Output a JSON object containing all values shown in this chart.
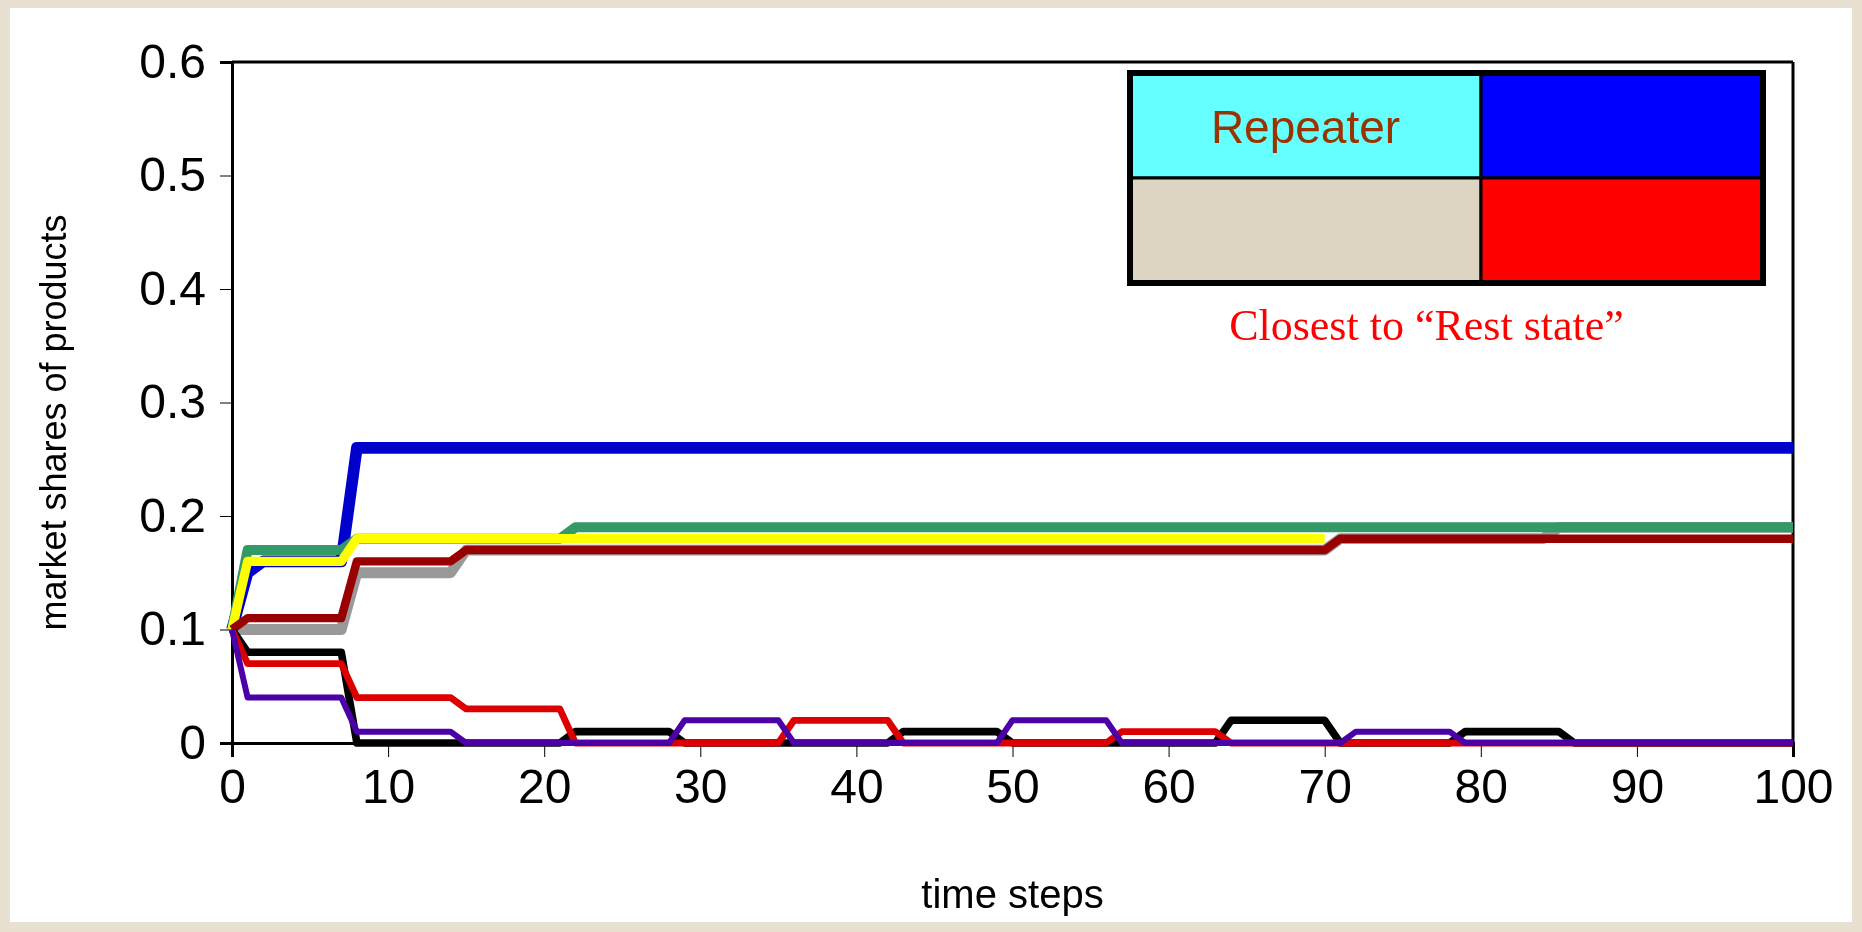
{
  "chart_data": {
    "type": "line",
    "xlabel": "time steps",
    "ylabel": "market shares of products",
    "annotations": [
      "Repeater",
      "Closest to “Rest state”"
    ],
    "xlim": [
      0,
      100
    ],
    "xticks": [
      0,
      10,
      20,
      30,
      40,
      50,
      60,
      70,
      80,
      90,
      100
    ],
    "ylim": [
      0,
      0.6
    ],
    "yticks": [
      0,
      0.1,
      0.2,
      0.3,
      0.4,
      0.5,
      0.6
    ],
    "grid": false,
    "marker": "none",
    "line_style": "solid",
    "series": [
      {
        "color": "#0000cc",
        "x": [
          0,
          1,
          2,
          7,
          8,
          100
        ],
        "values": [
          0.1,
          0.15,
          0.16,
          0.16,
          0.26,
          0.26
        ]
      },
      {
        "color": "#999999",
        "x": [
          0,
          1,
          7,
          8,
          14,
          15,
          70,
          71,
          84,
          85,
          100
        ],
        "values": [
          0.1,
          0.1,
          0.1,
          0.15,
          0.15,
          0.17,
          0.17,
          0.18,
          0.18,
          0.19,
          0.19
        ]
      },
      {
        "color": "#339966",
        "x": [
          0,
          1,
          7,
          8,
          21,
          22,
          100
        ],
        "values": [
          0.1,
          0.17,
          0.17,
          0.18,
          0.18,
          0.19,
          0.19
        ]
      },
      {
        "color": "#ffff00",
        "x": [
          0,
          1,
          7,
          8,
          70
        ],
        "values": [
          0.1,
          0.16,
          0.16,
          0.18,
          0.18
        ]
      },
      {
        "color": "#990000",
        "x": [
          0,
          1,
          7,
          8,
          14,
          15,
          70,
          71,
          100
        ],
        "values": [
          0.1,
          0.11,
          0.11,
          0.16,
          0.16,
          0.17,
          0.17,
          0.18,
          0.18
        ]
      },
      {
        "color": "#000000",
        "x": [
          0,
          1,
          7,
          8,
          21,
          22,
          28,
          29,
          42,
          43,
          49,
          50,
          63,
          64,
          70,
          71,
          78,
          79,
          85,
          86,
          100
        ],
        "values": [
          0.1,
          0.08,
          0.08,
          0,
          0,
          0.01,
          0.01,
          0,
          0,
          0.01,
          0.01,
          0,
          0,
          0.02,
          0.02,
          0,
          0,
          0.01,
          0.01,
          0,
          0
        ]
      },
      {
        "color": "#dd0000",
        "x": [
          0,
          1,
          7,
          8,
          14,
          15,
          21,
          22,
          35,
          36,
          42,
          43,
          56,
          57,
          63,
          64,
          100
        ],
        "values": [
          0.1,
          0.07,
          0.07,
          0.04,
          0.04,
          0.03,
          0.03,
          0,
          0,
          0.02,
          0.02,
          0,
          0,
          0.01,
          0.01,
          0,
          0
        ]
      },
      {
        "color": "#4b00a8",
        "x": [
          0,
          1,
          7,
          8,
          14,
          15,
          28,
          29,
          35,
          36,
          49,
          50,
          56,
          57,
          71,
          72,
          78,
          79,
          100
        ],
        "values": [
          0.1,
          0.04,
          0.04,
          0.01,
          0.01,
          0,
          0,
          0.02,
          0.02,
          0,
          0,
          0.02,
          0.02,
          0,
          0,
          0.01,
          0.01,
          0,
          0
        ]
      }
    ]
  }
}
